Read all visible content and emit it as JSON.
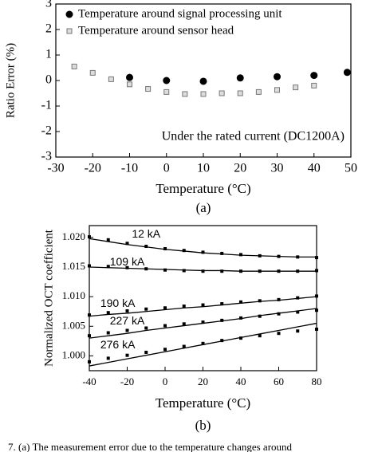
{
  "chart_data": [
    {
      "type": "scatter",
      "ylabel": "Ratio Error (%)",
      "xlabel": "Temperature (°C)",
      "panel": "(a)",
      "annotation": "Under the rated current (DC1200A)",
      "xlim": [
        -30,
        50
      ],
      "xticks": [
        -30,
        -20,
        -10,
        0,
        10,
        20,
        30,
        40,
        50
      ],
      "ylim": [
        -3,
        3
      ],
      "yticks": [
        -3,
        -2,
        -1,
        0,
        1,
        2,
        3
      ],
      "legend": "upper left",
      "series": [
        {
          "name": "Temperature around signal processing unit",
          "color": "#000000",
          "marker": "circle",
          "x": [
            -10,
            0,
            10,
            20,
            30,
            40,
            49
          ],
          "values": [
            0.12,
            0.0,
            -0.03,
            0.1,
            0.15,
            0.2,
            0.32
          ]
        },
        {
          "name": "Temperature around sensor head",
          "color": "#999999",
          "marker": "square",
          "x": [
            -25,
            -20,
            -15,
            -10,
            -5,
            0,
            5,
            10,
            15,
            20,
            25,
            30,
            35,
            40
          ],
          "values": [
            0.55,
            0.3,
            0.05,
            -0.15,
            -0.33,
            -0.45,
            -0.53,
            -0.53,
            -0.5,
            -0.5,
            -0.45,
            -0.37,
            -0.27,
            -0.2
          ]
        }
      ]
    },
    {
      "type": "line",
      "ylabel": "Normalized OCT coefficient",
      "xlabel": "Temperature (°C)",
      "panel": "(b)",
      "xlim": [
        -40,
        80
      ],
      "xticks": [
        -40,
        -20,
        0,
        20,
        40,
        60,
        80
      ],
      "ylim": [
        0.9975,
        1.022
      ],
      "yticks": [
        {
          "value": 1.0,
          "label": "1.000"
        },
        1.005,
        {
          "value": 1.01,
          "label": "1.010"
        },
        1.015,
        {
          "value": 1.02,
          "label": "1.020"
        }
      ],
      "x": [
        -40,
        -30,
        -20,
        -10,
        0,
        10,
        20,
        30,
        40,
        50,
        60,
        70,
        80
      ],
      "series": [
        {
          "name": "12 kA",
          "color": "#000000",
          "values": [
            1.0198,
            1.0193,
            1.0188,
            1.0184,
            1.018,
            1.0177,
            1.0174,
            1.0172,
            1.017,
            1.0169,
            1.0168,
            1.0167,
            1.0167
          ],
          "measured": [
            1.0201,
            1.0196,
            1.019,
            1.0185,
            1.0181,
            1.0178,
            1.0175,
            1.0173,
            1.0171,
            1.0169,
            1.0168,
            1.0167,
            1.0166
          ]
        },
        {
          "name": "109 kA",
          "color": "#000000",
          "values": [
            1.015,
            1.0149,
            1.0148,
            1.0147,
            1.0146,
            1.0145,
            1.0144,
            1.0144,
            1.0143,
            1.0143,
            1.0143,
            1.0143,
            1.0143
          ],
          "measured": [
            1.0152,
            1.0151,
            1.0149,
            1.0147,
            1.0145,
            1.0144,
            1.0143,
            1.0143,
            1.0143,
            1.0143,
            1.0143,
            1.0143,
            1.0144
          ]
        },
        {
          "name": "190 kA",
          "color": "#000000",
          "values": [
            1.0067,
            1.007,
            1.0072,
            1.0075,
            1.0078,
            1.0081,
            1.0083,
            1.0086,
            1.0089,
            1.0092,
            1.0094,
            1.0097,
            1.01
          ],
          "measured": [
            1.0069,
            1.0073,
            1.0076,
            1.0079,
            1.0081,
            1.0084,
            1.0086,
            1.0088,
            1.0091,
            1.0093,
            1.0095,
            1.0098,
            1.0101
          ]
        },
        {
          "name": "227 kA",
          "color": "#000000",
          "values": [
            1.003,
            1.0034,
            1.0038,
            1.0043,
            1.0047,
            1.0051,
            1.0055,
            1.0059,
            1.0063,
            1.0068,
            1.0072,
            1.0076,
            1.008
          ],
          "measured": [
            1.0034,
            1.0039,
            1.0043,
            1.0047,
            1.0051,
            1.0054,
            1.0057,
            1.006,
            1.0064,
            1.0067,
            1.0071,
            1.0074,
            1.0077
          ]
        },
        {
          "name": "276 kA",
          "color": "#000000",
          "values": [
            0.9983,
            0.9989,
            0.9995,
            1.0001,
            1.0007,
            1.0013,
            1.0019,
            1.0025,
            1.0031,
            1.0037,
            1.0043,
            1.0049,
            1.0055
          ],
          "measured": [
            0.999,
            0.9996,
            1.0001,
            1.0006,
            1.0011,
            1.0016,
            1.0021,
            1.0026,
            1.003,
            1.0034,
            1.0038,
            1.0042,
            1.0045
          ]
        }
      ]
    }
  ],
  "caption": "7.  (a) The measurement error due to the temperature changes around"
}
